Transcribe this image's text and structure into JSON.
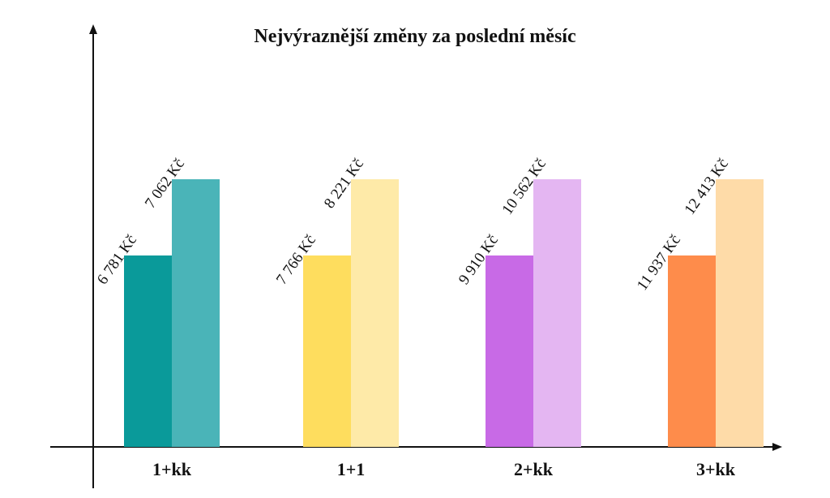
{
  "chart_data": {
    "type": "bar",
    "title": "Nejvýraznější změny za poslední měsíc",
    "categories": [
      "1+kk",
      "1+1",
      "2+kk",
      "3+kk"
    ],
    "series": [
      {
        "values": [
          6781,
          7766,
          9910,
          11937
        ],
        "value_labels": [
          "6 781 Kč",
          "7 766 Kč",
          "9 910 Kč",
          "11 937 Kč"
        ],
        "colors": [
          "#0a9a9a",
          "#fedd5e",
          "#c86ae6",
          "#fe8c4b"
        ]
      },
      {
        "values": [
          7062,
          8221,
          10562,
          12413
        ],
        "value_labels": [
          "7 062 Kč",
          "8 221 Kč",
          "10 562 Kč",
          "12 413 Kč"
        ],
        "colors": [
          "#4ab4b8",
          "#feeaa8",
          "#e4b6f2",
          "#fedba8"
        ]
      }
    ]
  }
}
